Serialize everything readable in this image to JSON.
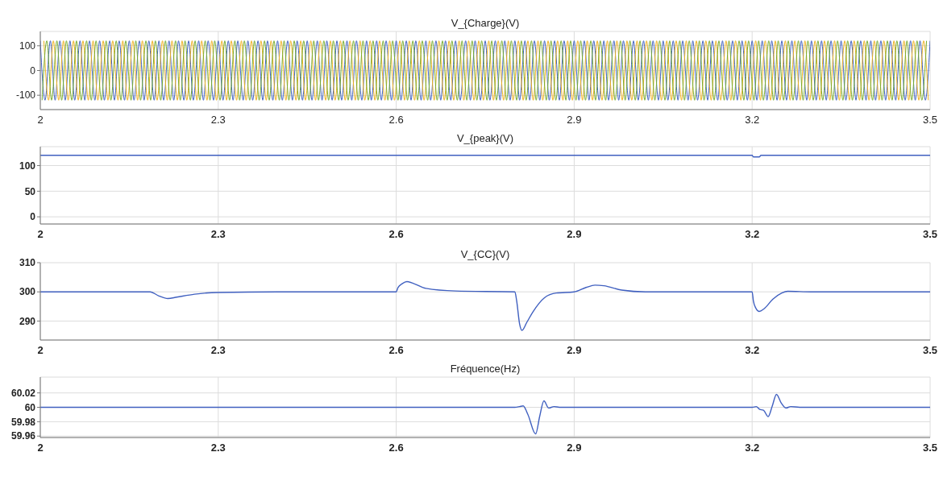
{
  "chart_data": [
    {
      "type": "line",
      "title": "V_{Charge}(V)",
      "xlim": [
        2,
        3.5
      ],
      "xticks": [
        2,
        2.3,
        2.6,
        2.9,
        3.2,
        3.5
      ],
      "ylim": [
        -158,
        158
      ],
      "yticks": [
        -100,
        0,
        100
      ],
      "grid": true,
      "series": [
        {
          "color": "#4060c0",
          "x": [
            2.0,
            2.008,
            2.017,
            2.025,
            2.033,
            2.042,
            2.05,
            2.058,
            2.067,
            2.075,
            2.083,
            2.092,
            2.1,
            2.108,
            2.117,
            2.125,
            2.133,
            2.142,
            2.15,
            2.158,
            2.167,
            2.175,
            2.183,
            2.192,
            2.2,
            2.208,
            2.217,
            2.225,
            2.233,
            2.242,
            2.25,
            2.258,
            2.267,
            2.275,
            2.283,
            2.292,
            2.3,
            2.308,
            2.317,
            2.325,
            2.333,
            2.342,
            2.35,
            2.358,
            2.367,
            2.375,
            2.383,
            2.392,
            2.4,
            2.408,
            2.417,
            2.425,
            2.433,
            2.442,
            2.45,
            2.458,
            2.467,
            2.475,
            2.483,
            2.492,
            2.5,
            2.508,
            2.517,
            2.525,
            2.533,
            2.542,
            2.55,
            2.558,
            2.567,
            2.575,
            2.583,
            2.592,
            2.6,
            2.608,
            2.617,
            2.625,
            2.633,
            2.642,
            2.65,
            2.658,
            2.667,
            2.675,
            2.683,
            2.692,
            2.7,
            2.708,
            2.717,
            2.725,
            2.733,
            2.742,
            2.75,
            2.758,
            2.767,
            2.775,
            2.783,
            2.792,
            2.8,
            2.808,
            2.817,
            2.825,
            2.833,
            2.842,
            2.85,
            2.858,
            2.867,
            2.875,
            2.883,
            2.892,
            2.9,
            2.908,
            2.917,
            2.925,
            2.933,
            2.942,
            2.95,
            2.958,
            2.967,
            2.975,
            2.983,
            2.992,
            3.0,
            3.008,
            3.017,
            3.025,
            3.033,
            3.042,
            3.05,
            3.058,
            3.067,
            3.075,
            3.083,
            3.092,
            3.1,
            3.108,
            3.117,
            3.125,
            3.133,
            3.142,
            3.15,
            3.158,
            3.167,
            3.175,
            3.183,
            3.192,
            3.2,
            3.208,
            3.217,
            3.225,
            3.233,
            3.242,
            3.25,
            3.258,
            3.267,
            3.275,
            3.283,
            3.292,
            3.3,
            3.308,
            3.317,
            3.325,
            3.333,
            3.342,
            3.35,
            3.358,
            3.367,
            3.375,
            3.383,
            3.392,
            3.4,
            3.408,
            3.417,
            3.425,
            3.433,
            3.442,
            3.45,
            3.458,
            3.467,
            3.475,
            3.483,
            3.492,
            3.5
          ],
          "values": [
            120,
            -120,
            120,
            -120,
            120,
            -120,
            120,
            -120,
            120,
            -120,
            120,
            -120,
            120,
            -120,
            120,
            -120,
            120,
            -120,
            120,
            -120,
            120,
            -120,
            120,
            -120,
            120,
            -120,
            120,
            -120,
            120,
            -120,
            120,
            -120,
            120,
            -120,
            120,
            -120,
            120,
            -120,
            120,
            -120,
            120,
            -120,
            120,
            -120,
            120,
            -120,
            120,
            -120,
            120,
            -120,
            120,
            -120,
            120,
            -120,
            120,
            -120,
            120,
            -120,
            120,
            -120,
            120,
            -120,
            120,
            -120,
            120,
            -120,
            120,
            -120,
            120,
            -120,
            120,
            -120,
            120,
            -120,
            120,
            -120,
            120,
            -120,
            120,
            -120,
            120,
            -120,
            120,
            -120,
            120,
            -120,
            120,
            -120,
            120,
            -120,
            120,
            -120,
            120,
            -120,
            120,
            -120,
            120,
            -120,
            120,
            -120,
            120,
            -120,
            120,
            -120,
            120,
            -120,
            120,
            -120,
            120,
            -120,
            120,
            -120,
            120,
            -120,
            120,
            -120,
            120,
            -120,
            120,
            -120,
            120,
            -120,
            120,
            -120,
            120,
            -120,
            120,
            -120,
            120,
            -120,
            120,
            -120,
            120,
            -120,
            120,
            -120,
            120,
            -120,
            120,
            -120,
            120,
            -120,
            120,
            -120,
            120,
            -120,
            120,
            -120,
            120,
            -120,
            120,
            -120,
            120,
            -120,
            120,
            -120,
            120,
            -120,
            120,
            -120,
            120,
            -120,
            120,
            -120,
            120,
            -120,
            120,
            -120,
            120,
            -120,
            120,
            -120,
            120,
            -120,
            120,
            -120,
            120,
            -120,
            120,
            -120,
            120
          ]
        },
        {
          "color": "#edb120",
          "x": [
            2.006,
            2.014,
            2.022,
            2.031,
            2.039,
            2.047,
            2.056,
            2.064,
            2.072,
            2.081,
            2.089,
            2.097,
            2.106,
            2.114,
            2.122,
            2.131,
            2.139,
            2.147,
            2.156,
            2.164,
            2.172,
            2.181,
            2.189,
            2.197,
            2.206,
            2.214,
            2.222,
            2.231,
            2.239,
            2.247,
            2.256,
            2.264,
            2.272,
            2.281,
            2.289,
            2.297,
            2.306,
            2.314,
            2.322,
            2.331,
            2.339,
            2.347,
            2.356,
            2.364,
            2.372,
            2.381,
            2.389,
            2.397,
            2.406,
            2.414,
            2.422,
            2.431,
            2.439,
            2.447,
            2.456,
            2.464,
            2.472,
            2.481,
            2.489,
            2.497,
            2.506,
            2.514,
            2.522,
            2.531,
            2.539,
            2.547,
            2.556,
            2.564,
            2.572,
            2.581,
            2.589,
            2.597,
            2.606,
            2.614,
            2.622,
            2.631,
            2.639,
            2.647,
            2.656,
            2.664,
            2.672,
            2.681,
            2.689,
            2.697,
            2.706,
            2.714,
            2.722,
            2.731,
            2.739,
            2.747,
            2.756,
            2.764,
            2.772,
            2.781,
            2.789,
            2.797,
            2.806,
            2.814,
            2.822,
            2.831,
            2.839,
            2.847,
            2.856,
            2.864,
            2.872,
            2.881,
            2.889,
            2.897,
            2.906,
            2.914,
            2.922,
            2.931,
            2.939,
            2.947,
            2.956,
            2.964,
            2.972,
            2.981,
            2.989,
            2.997,
            3.006,
            3.014,
            3.022,
            3.031,
            3.039,
            3.047,
            3.056,
            3.064,
            3.072,
            3.081,
            3.089,
            3.097,
            3.106,
            3.114,
            3.122,
            3.131,
            3.139,
            3.147,
            3.156,
            3.164,
            3.172,
            3.181,
            3.189,
            3.197,
            3.206,
            3.214,
            3.222,
            3.231,
            3.239,
            3.247,
            3.256,
            3.264,
            3.272,
            3.281,
            3.289,
            3.297,
            3.306,
            3.314,
            3.322,
            3.331,
            3.339,
            3.347,
            3.356,
            3.364,
            3.372,
            3.381,
            3.389,
            3.397,
            3.406,
            3.414,
            3.422,
            3.431,
            3.439,
            3.447,
            3.456,
            3.464,
            3.472,
            3.481,
            3.489,
            3.497
          ],
          "values": [
            120,
            -120,
            120,
            -120,
            120,
            -120,
            120,
            -120,
            120,
            -120,
            120,
            -120,
            120,
            -120,
            120,
            -120,
            120,
            -120,
            120,
            -120,
            120,
            -120,
            120,
            -120,
            120,
            -120,
            120,
            -120,
            120,
            -120,
            120,
            -120,
            120,
            -120,
            120,
            -120,
            120,
            -120,
            120,
            -120,
            120,
            -120,
            120,
            -120,
            120,
            -120,
            120,
            -120,
            120,
            -120,
            120,
            -120,
            120,
            -120,
            120,
            -120,
            120,
            -120,
            120,
            -120,
            120,
            -120,
            120,
            -120,
            120,
            -120,
            120,
            -120,
            120,
            -120,
            120,
            -120,
            120,
            -120,
            120,
            -120,
            120,
            -120,
            120,
            -120,
            120,
            -120,
            120,
            -120,
            120,
            -120,
            120,
            -120,
            120,
            -120,
            120,
            -120,
            120,
            -120,
            120,
            -120,
            120,
            -120,
            120,
            -120,
            120,
            -120,
            120,
            -120,
            120,
            -120,
            120,
            -120,
            120,
            -120,
            120,
            -120,
            120,
            -120,
            120,
            -120,
            120,
            -120,
            120,
            -120,
            120,
            -120,
            120,
            -120,
            120,
            -120,
            120,
            -120,
            120,
            -120,
            120,
            -120,
            120,
            -120,
            120,
            -120,
            120,
            -120,
            120,
            -120,
            120,
            -120,
            120,
            -120,
            120,
            -120,
            120,
            -120,
            120,
            -120,
            120,
            -120,
            120,
            -120,
            120,
            -120,
            120,
            -120,
            120,
            -120,
            120,
            -120,
            120,
            -120,
            120,
            -120,
            120,
            -120,
            120,
            -120,
            120,
            -120,
            120,
            -120,
            120,
            -120,
            120,
            -120,
            120,
            -120
          ]
        },
        {
          "color": "#77ac30",
          "x": [
            2.003,
            2.011,
            2.019,
            2.028,
            2.036,
            2.044,
            2.053,
            2.061,
            2.069,
            2.078,
            2.086,
            2.094,
            2.103,
            2.111,
            2.119,
            2.128,
            2.136,
            2.144,
            2.153,
            2.161,
            2.169,
            2.178,
            2.186,
            2.194,
            2.203,
            2.211,
            2.219,
            2.228,
            2.236,
            2.244,
            2.253,
            2.261,
            2.269,
            2.278,
            2.286,
            2.294,
            2.303,
            2.311,
            2.319,
            2.328,
            2.336,
            2.344,
            2.353,
            2.361,
            2.369,
            2.378,
            2.386,
            2.394,
            2.403,
            2.411,
            2.419,
            2.428,
            2.436,
            2.444,
            2.453,
            2.461,
            2.469,
            2.478,
            2.486,
            2.494,
            2.503,
            2.511,
            2.519,
            2.528,
            2.536,
            2.544,
            2.553,
            2.561,
            2.569,
            2.578,
            2.586,
            2.594,
            2.603,
            2.611,
            2.619,
            2.628,
            2.636,
            2.644,
            2.653,
            2.661,
            2.669,
            2.678,
            2.686,
            2.694,
            2.703,
            2.711,
            2.719,
            2.728,
            2.736,
            2.744,
            2.753,
            2.761,
            2.769,
            2.778,
            2.786,
            2.794,
            2.803,
            2.811,
            2.819,
            2.828,
            2.836,
            2.844,
            2.853,
            2.861,
            2.869,
            2.878,
            2.886,
            2.894,
            2.903,
            2.911,
            2.919,
            2.928,
            2.936,
            2.944,
            2.953,
            2.961,
            2.969,
            2.978,
            2.986,
            2.994,
            3.003,
            3.011,
            3.019,
            3.028,
            3.036,
            3.044,
            3.053,
            3.061,
            3.069,
            3.078,
            3.086,
            3.094,
            3.103,
            3.111,
            3.119,
            3.128,
            3.136,
            3.144,
            3.153,
            3.161,
            3.169,
            3.178,
            3.186,
            3.194,
            3.203,
            3.211,
            3.219,
            3.228,
            3.236,
            3.244,
            3.253,
            3.261,
            3.269,
            3.278,
            3.286,
            3.294,
            3.303,
            3.311,
            3.319,
            3.328,
            3.336,
            3.344,
            3.353,
            3.361,
            3.369,
            3.378,
            3.386,
            3.394,
            3.403,
            3.411,
            3.419,
            3.428,
            3.436,
            3.444,
            3.453,
            3.461,
            3.469,
            3.478,
            3.486,
            3.494
          ],
          "values": [
            -120,
            120,
            -120,
            120,
            -120,
            120,
            -120,
            120,
            -120,
            120,
            -120,
            120,
            -120,
            120,
            -120,
            120,
            -120,
            120,
            -120,
            120,
            -120,
            120,
            -120,
            120,
            -120,
            120,
            -120,
            120,
            -120,
            120,
            -120,
            120,
            -120,
            120,
            -120,
            120,
            -120,
            120,
            -120,
            120,
            -120,
            120,
            -120,
            120,
            -120,
            120,
            -120,
            120,
            -120,
            120,
            -120,
            120,
            -120,
            120,
            -120,
            120,
            -120,
            120,
            -120,
            120,
            -120,
            120,
            -120,
            120,
            -120,
            120,
            -120,
            120,
            -120,
            120,
            -120,
            120,
            -120,
            120,
            -120,
            120,
            -120,
            120,
            -120,
            120,
            -120,
            120,
            -120,
            120,
            -120,
            120,
            -120,
            120,
            -120,
            120,
            -120,
            120,
            -120,
            120,
            -120,
            120,
            -120,
            120,
            -120,
            120,
            -120,
            120,
            -120,
            120,
            -120,
            120,
            -120,
            120,
            -120,
            120,
            -120,
            120,
            -120,
            120,
            -120,
            120,
            -120,
            120,
            -120,
            120,
            -120,
            120,
            -120,
            120,
            -120,
            120,
            -120,
            120,
            -120,
            120,
            -120,
            120,
            -120,
            120,
            -120,
            120,
            -120,
            120,
            -120,
            120,
            -120,
            120,
            -120,
            120,
            -120,
            120,
            -120,
            120,
            -120,
            120,
            -120,
            120,
            -120,
            120,
            -120,
            120,
            -120,
            120,
            -120,
            120,
            -120,
            120,
            -120,
            120,
            -120,
            120,
            -120,
            120,
            -120,
            120,
            -120,
            120,
            -120,
            120,
            -120,
            120,
            -120,
            120,
            -120,
            120
          ]
        }
      ]
    },
    {
      "type": "line",
      "title": "V_{peak}(V)",
      "xlim": [
        2,
        3.5
      ],
      "xticks": [
        2,
        2.3,
        2.6,
        2.9,
        3.2,
        3.5
      ],
      "ylim": [
        -14,
        137
      ],
      "yticks": [
        0,
        50,
        100
      ],
      "grid": true,
      "series": [
        {
          "color": "#4060c0",
          "x": [
            2,
            3.2,
            3.202,
            3.212,
            3.215,
            3.5
          ],
          "values": [
            120,
            120,
            117,
            117,
            120,
            120
          ]
        }
      ]
    },
    {
      "type": "line",
      "title": "V_{CC}(V)",
      "xlim": [
        2,
        3.5
      ],
      "xticks": [
        2,
        2.3,
        2.6,
        2.9,
        3.2,
        3.5
      ],
      "ylim": [
        283.5,
        310
      ],
      "yticks": [
        290,
        300,
        310
      ],
      "grid": true,
      "series": [
        {
          "color": "#4060c0",
          "x": [
            2,
            2.1,
            2.185,
            2.2,
            2.215,
            2.23,
            2.26,
            2.3,
            2.4,
            2.6,
            2.603,
            2.61,
            2.618,
            2.63,
            2.65,
            2.7,
            2.8,
            2.803,
            2.808,
            2.812,
            2.82,
            2.83,
            2.85,
            2.87,
            2.9,
            2.92,
            2.935,
            2.95,
            2.98,
            3.02,
            3.2,
            3.202,
            3.206,
            3.212,
            3.22,
            3.235,
            3.25,
            3.26,
            3.3,
            3.5
          ],
          "values": [
            300,
            300,
            300,
            298.6,
            297.7,
            298.2,
            299.2,
            299.8,
            300,
            300,
            301.5,
            302.8,
            303.5,
            302.8,
            301.2,
            300.3,
            300,
            297,
            289,
            286.8,
            289.5,
            293,
            298,
            299.6,
            300,
            301.5,
            302.3,
            302.1,
            300.6,
            300,
            300,
            297,
            294.5,
            293.3,
            294.2,
            297.5,
            299.6,
            300.2,
            300,
            300
          ]
        }
      ]
    },
    {
      "type": "line",
      "title": "Fréquence(Hz)",
      "xlim": [
        2,
        3.5
      ],
      "xticks": [
        2,
        2.3,
        2.6,
        2.9,
        3.2,
        3.5
      ],
      "ylim": [
        59.958,
        60.042
      ],
      "yticks": [
        59.96,
        59.98,
        60,
        60.02
      ],
      "grid": true,
      "series": [
        {
          "color": "#4060c0",
          "x": [
            2,
            2.8,
            2.808,
            2.814,
            2.822,
            2.835,
            2.842,
            2.849,
            2.857,
            2.866,
            2.875,
            2.9,
            3.2,
            3.207,
            3.213,
            3.219,
            3.227,
            3.234,
            3.241,
            3.249,
            3.257,
            3.265,
            3.28,
            3.3,
            3.5
          ],
          "values": [
            60,
            60,
            60.001,
            60.002,
            59.99,
            59.963,
            59.988,
            60.009,
            59.999,
            60.001,
            60,
            60,
            60,
            60.001,
            59.997,
            59.996,
            59.987,
            60.002,
            60.018,
            60.006,
            59.999,
            60.001,
            60,
            60,
            60
          ]
        }
      ]
    }
  ]
}
